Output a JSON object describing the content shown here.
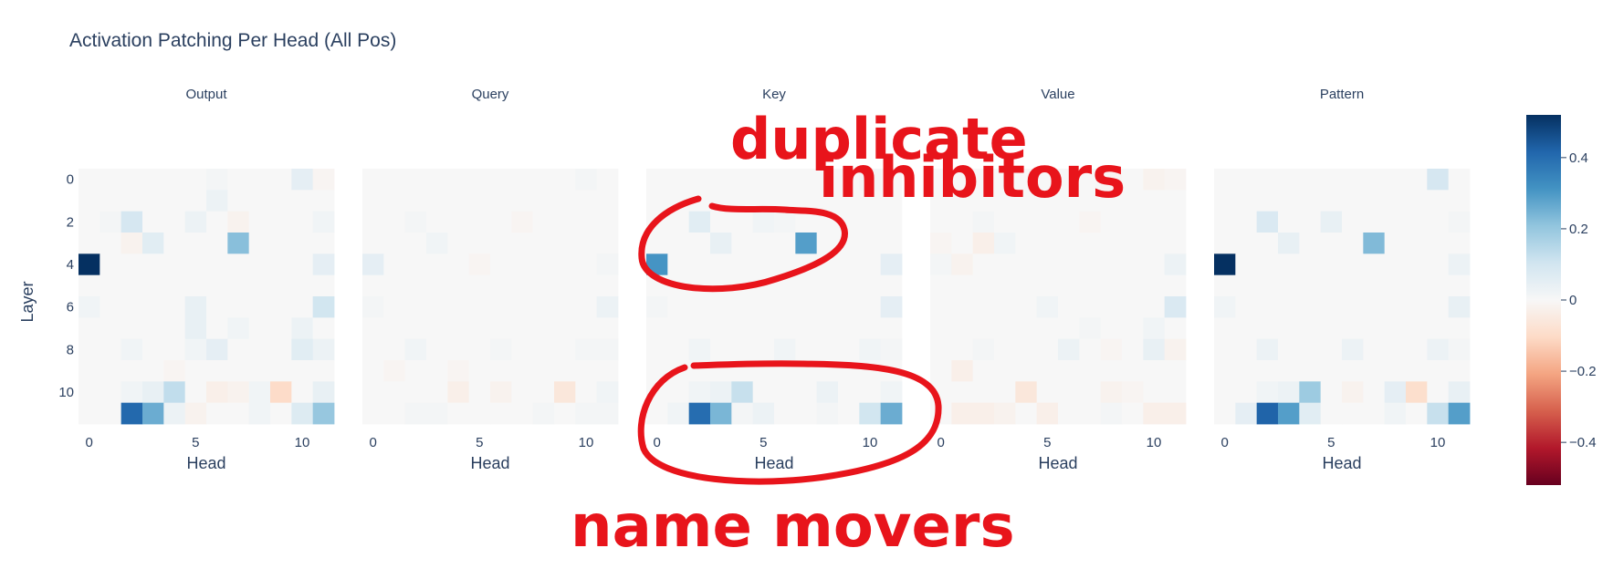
{
  "chart_data": {
    "type": "heatmap",
    "title": "Activation Patching Per Head (All Pos)",
    "xlabel": "Head",
    "ylabel": "Layer",
    "x_ticks": [
      0,
      5,
      10
    ],
    "y_ticks": [
      0,
      2,
      4,
      6,
      8,
      10
    ],
    "colorbar": {
      "range": [
        -0.52,
        0.52
      ],
      "ticks": [
        {
          "value": 0.4,
          "label": "0.4"
        },
        {
          "value": 0.2,
          "label": "0.2"
        },
        {
          "value": 0,
          "label": "0"
        },
        {
          "value": -0.2,
          "label": "−0.2"
        },
        {
          "value": -0.4,
          "label": "−0.4"
        }
      ],
      "colorscale": [
        "#67001f",
        "#b2182b",
        "#d6604d",
        "#f4a582",
        "#fddbc7",
        "#f7f7f7",
        "#d1e5f0",
        "#92c5de",
        "#4393c3",
        "#2166ac",
        "#053061"
      ]
    },
    "panels": [
      {
        "name": "Output",
        "z": [
          [
            0,
            0,
            0,
            0,
            0,
            0,
            0.01,
            0,
            0,
            0,
            0.05,
            -0.01
          ],
          [
            0,
            0,
            0,
            0,
            0,
            0,
            0.03,
            0,
            0,
            0,
            0,
            0
          ],
          [
            0,
            0.01,
            0.09,
            0,
            0,
            0.03,
            0,
            -0.02,
            0,
            0,
            0,
            0.02
          ],
          [
            0,
            0,
            -0.02,
            0.06,
            0,
            0,
            0,
            0.22,
            0,
            0,
            0,
            0
          ],
          [
            0.52,
            0,
            0,
            0,
            0,
            0,
            0,
            0,
            0,
            0,
            0,
            0.05
          ],
          [
            0,
            0,
            0,
            0,
            0,
            0,
            0,
            0,
            0,
            0,
            0,
            0
          ],
          [
            0.02,
            0,
            0,
            0,
            0,
            0.04,
            0,
            0,
            0,
            0,
            0,
            0.1
          ],
          [
            0,
            0,
            0,
            0,
            0,
            0.04,
            0,
            0.02,
            0,
            0,
            0.03,
            0
          ],
          [
            0,
            0,
            0.02,
            0,
            0,
            0.02,
            0.05,
            0,
            0,
            0,
            0.06,
            0.03
          ],
          [
            0,
            0,
            0,
            0,
            -0.01,
            0,
            0,
            0,
            0,
            0,
            0,
            0
          ],
          [
            0,
            0,
            0.02,
            0.04,
            0.13,
            0,
            -0.03,
            -0.02,
            0.02,
            -0.1,
            0,
            0.04
          ],
          [
            0,
            0,
            0.41,
            0.26,
            0.03,
            -0.02,
            0,
            0,
            0.02,
            0,
            0.07,
            0.2
          ]
        ]
      },
      {
        "name": "Query",
        "z": [
          [
            0,
            0,
            0,
            0,
            0,
            0,
            0,
            0,
            0,
            0,
            0.01,
            0
          ],
          [
            0,
            0,
            0,
            0,
            0,
            0,
            0,
            0,
            0,
            0,
            0,
            0
          ],
          [
            0,
            0,
            0.01,
            0,
            0,
            0,
            0,
            -0.01,
            0,
            0,
            0,
            0
          ],
          [
            0,
            0,
            0,
            0.02,
            0,
            0,
            0,
            0,
            0,
            0,
            0,
            0
          ],
          [
            0.05,
            0,
            0,
            0,
            0,
            -0.01,
            0,
            0,
            0,
            0,
            0,
            0.01
          ],
          [
            0,
            0,
            0,
            0,
            0,
            0,
            0,
            0,
            0,
            0,
            0,
            0
          ],
          [
            0.01,
            0,
            0,
            0,
            0,
            0,
            0,
            0,
            0,
            0,
            0,
            0.03
          ],
          [
            0,
            0,
            0,
            0,
            0,
            0,
            0,
            0,
            0,
            0,
            0,
            0
          ],
          [
            0,
            0,
            0.02,
            0,
            0,
            0,
            0.01,
            0,
            0,
            0,
            0.01,
            0.01
          ],
          [
            0,
            -0.01,
            0,
            0,
            -0.01,
            0,
            0,
            0,
            0,
            0,
            0,
            0
          ],
          [
            0,
            0,
            0,
            0,
            -0.03,
            0,
            -0.02,
            0,
            0,
            -0.06,
            0,
            0.02
          ],
          [
            0,
            0,
            0.01,
            0.01,
            0,
            0,
            0,
            0,
            0.01,
            0,
            0.01,
            0.01
          ]
        ]
      },
      {
        "name": "Key",
        "z": [
          [
            0,
            0,
            0,
            0,
            0,
            0,
            0,
            0,
            0,
            0,
            0.01,
            0
          ],
          [
            0,
            0,
            0,
            0,
            0,
            0,
            0,
            0,
            0,
            0,
            0,
            0
          ],
          [
            0,
            0,
            0.06,
            0,
            0,
            0.02,
            0.01,
            0,
            0,
            0,
            0,
            0
          ],
          [
            0,
            0,
            0,
            0.04,
            0,
            0,
            0,
            0.29,
            0,
            0,
            0,
            0
          ],
          [
            0.31,
            0,
            0,
            0,
            0,
            0,
            0,
            0,
            0,
            0,
            0,
            0.05
          ],
          [
            0,
            0,
            0,
            0,
            0,
            0,
            0,
            0,
            0,
            0,
            0,
            0
          ],
          [
            0.01,
            0,
            0,
            0,
            0,
            0,
            0,
            0,
            0,
            0,
            0,
            0.05
          ],
          [
            0,
            0,
            0,
            0,
            0,
            0,
            0,
            0,
            0,
            0,
            0,
            0
          ],
          [
            0,
            0,
            0.02,
            0,
            0,
            0,
            0.02,
            0,
            0,
            0,
            0.02,
            0.01
          ],
          [
            0,
            0,
            0,
            0,
            0,
            0,
            0,
            0,
            0,
            0,
            0,
            0
          ],
          [
            0,
            0,
            0.02,
            0.03,
            0.12,
            0,
            0,
            0,
            0.03,
            0,
            0,
            0.02
          ],
          [
            0,
            0.02,
            0.4,
            0.24,
            0.01,
            0.03,
            0,
            0,
            0.01,
            0,
            0.1,
            0.26
          ]
        ]
      },
      {
        "name": "Value",
        "z": [
          [
            0,
            0,
            0,
            0,
            0,
            0,
            0,
            0,
            -0.01,
            0,
            -0.02,
            -0.01
          ],
          [
            0,
            0,
            0,
            0,
            0,
            0,
            0,
            0,
            0,
            0,
            0,
            0
          ],
          [
            0,
            0,
            0.01,
            0,
            0,
            0,
            0,
            -0.01,
            0,
            0,
            0,
            0
          ],
          [
            -0.01,
            0,
            -0.03,
            0.02,
            0,
            0,
            0,
            0,
            0,
            0,
            0,
            0
          ],
          [
            0.01,
            -0.02,
            0,
            0,
            0,
            0,
            0,
            0,
            0,
            0,
            0,
            0.03
          ],
          [
            0,
            0,
            0,
            0,
            0,
            0,
            0,
            0,
            0,
            0,
            0,
            0
          ],
          [
            0,
            0,
            0,
            0,
            0,
            0.02,
            0,
            0,
            0,
            0,
            0,
            0.08
          ],
          [
            0,
            0,
            0,
            0,
            0,
            0,
            0,
            0.01,
            0,
            0,
            0.02,
            0
          ],
          [
            0,
            0,
            0.01,
            0,
            0,
            0,
            0.03,
            0,
            -0.01,
            0,
            0.04,
            -0.02
          ],
          [
            0,
            -0.03,
            0,
            0,
            0,
            0,
            0,
            0,
            0,
            0,
            0,
            0
          ],
          [
            0,
            0,
            0,
            0,
            -0.06,
            0,
            0,
            0,
            -0.02,
            -0.01,
            0,
            0
          ],
          [
            0,
            -0.03,
            -0.03,
            -0.02,
            0,
            -0.03,
            0,
            0,
            0.01,
            0,
            -0.03,
            -0.03
          ]
        ]
      },
      {
        "name": "Pattern",
        "z": [
          [
            0,
            0,
            0,
            0,
            0,
            0,
            0,
            0,
            0,
            0,
            0.09,
            0
          ],
          [
            0,
            0,
            0,
            0,
            0,
            0,
            0,
            0,
            0,
            0,
            0,
            0
          ],
          [
            0,
            0,
            0.08,
            0,
            0,
            0.04,
            0,
            0,
            0,
            0,
            0,
            0.01
          ],
          [
            0,
            0,
            0,
            0.04,
            0,
            0,
            0,
            0.23,
            0,
            0,
            0,
            0
          ],
          [
            0.52,
            0,
            0,
            0,
            0,
            0,
            0,
            0,
            0,
            0,
            0,
            0.03
          ],
          [
            0,
            0,
            0,
            0,
            0,
            0,
            0,
            0,
            0,
            0,
            0,
            0
          ],
          [
            0.02,
            0,
            0,
            0,
            0,
            0,
            0,
            0,
            0,
            0,
            0,
            0.04
          ],
          [
            0,
            0,
            0,
            0,
            0,
            0,
            0,
            0,
            0,
            0,
            0,
            0
          ],
          [
            0,
            0,
            0.03,
            0,
            0,
            0,
            0.03,
            0,
            0,
            0,
            0.03,
            0.01
          ],
          [
            0,
            0,
            0,
            0,
            0,
            0,
            0,
            0,
            0,
            0,
            0,
            0
          ],
          [
            0,
            0,
            0.02,
            0.03,
            0.19,
            0,
            -0.02,
            0,
            0.05,
            -0.09,
            0,
            0.04
          ],
          [
            0,
            0.05,
            0.42,
            0.29,
            0.06,
            0,
            0,
            0,
            0.02,
            0,
            0.12,
            0.29
          ]
        ]
      }
    ]
  },
  "annotations": {
    "top_line1": "duplicate",
    "top_line2": "inhibitors",
    "bottom": "name movers"
  }
}
